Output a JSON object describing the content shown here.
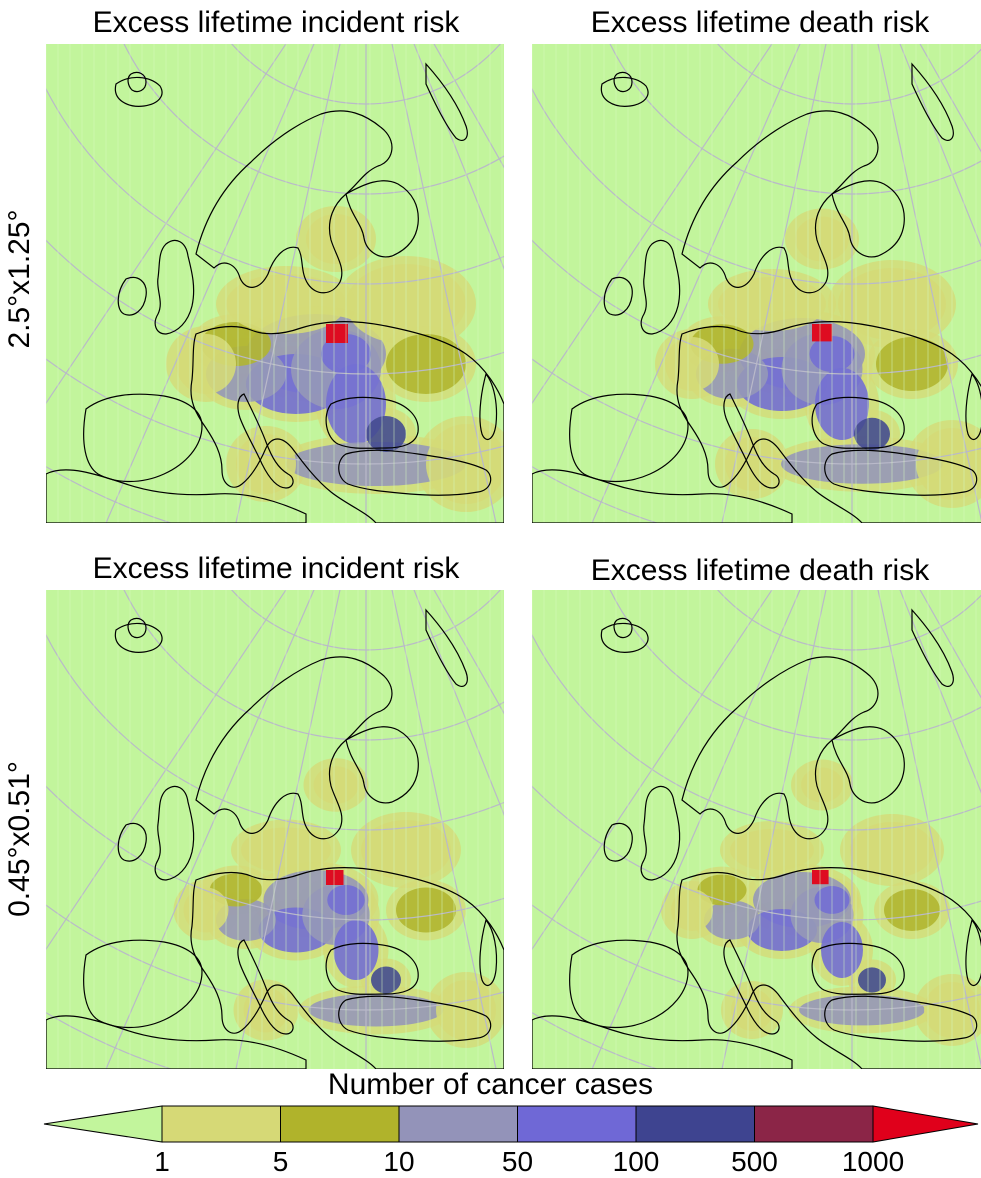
{
  "panels": [
    {
      "title": "Excess lifetime incident risk",
      "highlight_scale": 1.0
    },
    {
      "title": "Excess lifetime death risk",
      "highlight_scale": 0.9
    },
    {
      "title": "Excess lifetime incident risk",
      "highlight_scale": 0.75
    },
    {
      "title": "Excess lifetime death risk",
      "highlight_scale": 0.7
    }
  ],
  "rows": [
    {
      "label": "2.5°x1.25°"
    },
    {
      "label": "0.45°x0.51°"
    }
  ],
  "legend": {
    "title": "Number of cancer cases",
    "ticks": [
      "1",
      "5",
      "10",
      "50",
      "100",
      "500",
      "1000"
    ],
    "colors": {
      "below": "#c2f59c",
      "bins": [
        "#d6d976",
        "#b0b32b",
        "#9393b9",
        "#6f68d6",
        "#3e4490",
        "#8b2547"
      ],
      "above": "#e0001b"
    }
  },
  "map_colors": {
    "background": "#c2f59c",
    "graticule": "#b9b9c9",
    "coast": "#000000"
  }
}
